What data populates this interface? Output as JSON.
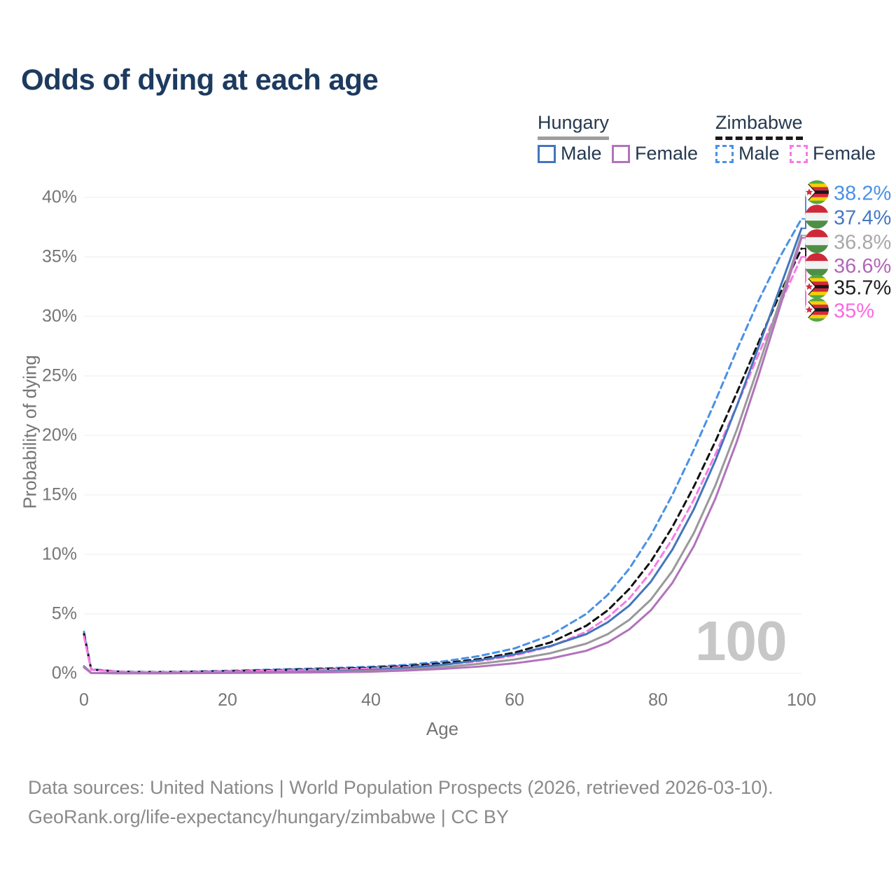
{
  "title": "Odds of dying at each age",
  "legend": {
    "hungary": {
      "name": "Hungary",
      "male": "Male",
      "female": "Female",
      "underline_color": "#9e9e9e",
      "male_color": "#4276bd",
      "female_color": "#b173bb"
    },
    "zimbabwe": {
      "name": "Zimbabwe",
      "male": "Male",
      "female": "Female",
      "underline_color": "#1a1a1a",
      "male_color": "#4a90e8",
      "female_color": "#f97ae5"
    }
  },
  "watermark": "100",
  "axes": {
    "x": {
      "label": "Age",
      "ticks": [
        0,
        20,
        40,
        60,
        80,
        100
      ]
    },
    "y": {
      "label": "Probability of dying",
      "tick_values": [
        0,
        5,
        10,
        15,
        20,
        25,
        30,
        35,
        40
      ],
      "tick_labels": [
        "0%",
        "5%",
        "10%",
        "15%",
        "20%",
        "25%",
        "30%",
        "35%",
        "40%"
      ]
    }
  },
  "chart_data": {
    "type": "line",
    "title": "Odds of dying at each age",
    "xlabel": "Age",
    "ylabel": "Probability of dying",
    "xlim": [
      0,
      100
    ],
    "ylim": [
      0,
      40
    ],
    "grid": true,
    "legend_position": "top-right",
    "x": [
      0,
      1,
      5,
      10,
      15,
      20,
      25,
      30,
      35,
      40,
      45,
      50,
      55,
      60,
      65,
      70,
      73,
      76,
      79,
      82,
      85,
      88,
      91,
      94,
      97,
      100
    ],
    "series": [
      {
        "name": "Zimbabwe Male",
        "color": "#4a90e8",
        "dashed": true,
        "end_label": "38.2%",
        "values": [
          3.5,
          0.35,
          0.15,
          0.12,
          0.16,
          0.22,
          0.3,
          0.38,
          0.46,
          0.56,
          0.72,
          1.0,
          1.45,
          2.1,
          3.2,
          5.0,
          6.6,
          8.8,
          11.6,
          15.0,
          18.8,
          22.9,
          27.2,
          31.3,
          35.0,
          38.2
        ]
      },
      {
        "name": "Zimbabwe",
        "color": "#111111",
        "dashed": true,
        "end_label": "35.7%",
        "values": [
          3.3,
          0.32,
          0.14,
          0.11,
          0.14,
          0.18,
          0.25,
          0.32,
          0.39,
          0.48,
          0.62,
          0.85,
          1.2,
          1.75,
          2.6,
          4.0,
          5.3,
          7.1,
          9.4,
          12.3,
          15.7,
          19.5,
          23.6,
          27.8,
          31.9,
          35.7
        ]
      },
      {
        "name": "Zimbabwe Female",
        "color": "#f97ae5",
        "dashed": true,
        "end_label": "35%",
        "values": [
          3.1,
          0.3,
          0.13,
          0.1,
          0.12,
          0.16,
          0.21,
          0.27,
          0.33,
          0.41,
          0.53,
          0.73,
          1.02,
          1.5,
          2.25,
          3.5,
          4.7,
          6.3,
          8.5,
          11.3,
          14.6,
          18.4,
          22.5,
          26.8,
          31.0,
          35.0
        ]
      },
      {
        "name": "Hungary Male",
        "color": "#4276bd",
        "dashed": false,
        "end_label": "37.4%",
        "values": [
          0.6,
          0.04,
          0.02,
          0.02,
          0.04,
          0.07,
          0.09,
          0.13,
          0.19,
          0.29,
          0.46,
          0.72,
          1.1,
          1.6,
          2.3,
          3.3,
          4.3,
          5.7,
          7.7,
          10.4,
          13.8,
          17.9,
          22.5,
          27.4,
          32.4,
          37.4
        ]
      },
      {
        "name": "Hungary",
        "color": "#999999",
        "dashed": false,
        "end_label": "36.8%",
        "values": [
          0.55,
          0.035,
          0.018,
          0.018,
          0.03,
          0.05,
          0.07,
          0.1,
          0.14,
          0.21,
          0.34,
          0.53,
          0.8,
          1.17,
          1.7,
          2.5,
          3.3,
          4.5,
          6.2,
          8.6,
          11.8,
          15.8,
          20.5,
          25.8,
          31.3,
          36.8
        ]
      },
      {
        "name": "Hungary Female",
        "color": "#b173bb",
        "dashed": false,
        "end_label": "36.6%",
        "values": [
          0.5,
          0.03,
          0.015,
          0.015,
          0.025,
          0.04,
          0.05,
          0.07,
          0.1,
          0.15,
          0.24,
          0.38,
          0.57,
          0.85,
          1.25,
          1.9,
          2.6,
          3.7,
          5.3,
          7.6,
          10.7,
          14.7,
          19.5,
          25.0,
          30.8,
          36.6
        ]
      }
    ]
  },
  "end_labels": [
    {
      "text": "38.2%",
      "value": 38.2,
      "color": "#4a90e8",
      "flag": "zw",
      "series": "Zimbabwe Male"
    },
    {
      "text": "37.4%",
      "value": 37.4,
      "color": "#4679c4",
      "flag": "hu",
      "series": "Hungary Male"
    },
    {
      "text": "36.8%",
      "value": 36.8,
      "color": "#a8a8a8",
      "flag": "hu",
      "series": "Hungary"
    },
    {
      "text": "36.6%",
      "value": 36.6,
      "color": "#b266b8",
      "flag": "hu",
      "series": "Hungary Female"
    },
    {
      "text": "35.7%",
      "value": 35.7,
      "color": "#1f1f1f",
      "flag": "zw",
      "series": "Zimbabwe"
    },
    {
      "text": "35%",
      "value": 35.0,
      "color": "#f969e2",
      "flag": "zw",
      "series": "Zimbabwe Female"
    }
  ],
  "footer": {
    "line1": "Data sources: United Nations | World Population Prospects (2026, retrieved 2026-03-10).",
    "line2": "GeoRank.org/life-expectancy/hungary/zimbabwe | CC BY"
  }
}
